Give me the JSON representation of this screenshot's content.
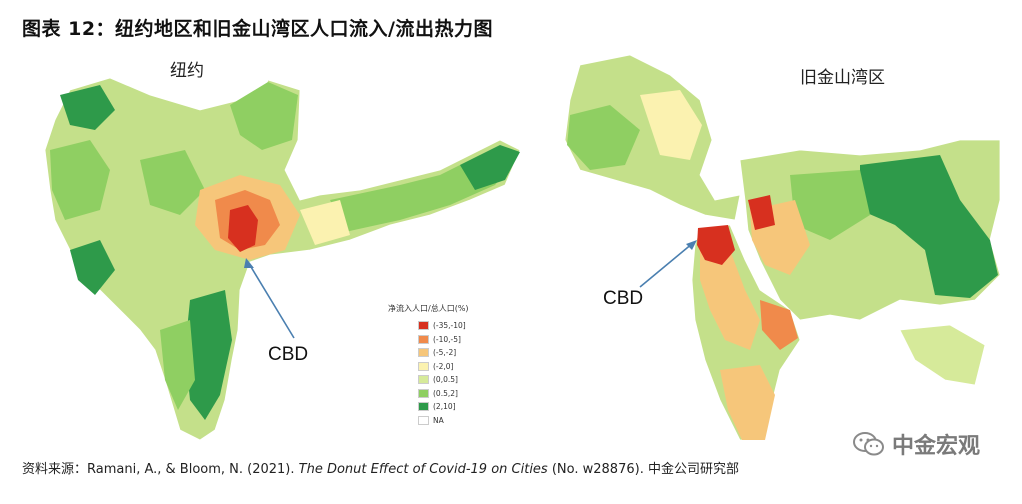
{
  "figure": {
    "title": "图表 12：纽约地区和旧金山湾区人口流入/流出热力图"
  },
  "panels": {
    "new_york": {
      "title": "纽约",
      "cbd_label": "CBD"
    },
    "sf_bay": {
      "title": "旧金山湾区",
      "cbd_label": "CBD"
    }
  },
  "legend": {
    "title": "净流入人口/总人口(%)",
    "items": [
      {
        "label": "(-35,-10]",
        "color": "#d7301f"
      },
      {
        "label": "(-10,-5]",
        "color": "#f08a4b"
      },
      {
        "label": "(-5,-2]",
        "color": "#f6c67a"
      },
      {
        "label": "(-2,0]",
        "color": "#fbf2b0"
      },
      {
        "label": "(0,0.5]",
        "color": "#d6ea9a"
      },
      {
        "label": "(0.5,2]",
        "color": "#8fcf62"
      },
      {
        "label": "(2,10]",
        "color": "#2e9a4a"
      },
      {
        "label": "NA",
        "color": "#ffffff"
      }
    ]
  },
  "source": {
    "prefix": "资料来源：Ramani, A., & Bloom, N. (2021). ",
    "title_italic": "The Donut Effect of Covid-19 on Cities",
    "suffix": " (No. w28876). 中金公司研究部"
  },
  "watermark": {
    "text": "中金宏观",
    "icon": "wechat-icon"
  },
  "arrow_color": "#4a7fb0"
}
